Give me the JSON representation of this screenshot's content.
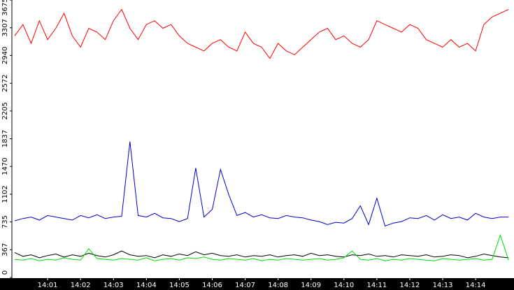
{
  "chart_data": {
    "type": "line",
    "categories": [
      null,
      null,
      null,
      null,
      "14:01",
      null,
      null,
      null,
      "14:02",
      null,
      null,
      null,
      "14:03",
      null,
      null,
      null,
      "14:04",
      null,
      null,
      null,
      "14:05",
      null,
      null,
      null,
      "14:06",
      null,
      null,
      null,
      "14:07",
      null,
      null,
      null,
      "14:08",
      null,
      null,
      null,
      "14:09",
      null,
      null,
      null,
      "14:10",
      null,
      null,
      null,
      "14:11",
      null,
      null,
      null,
      "14:12",
      null,
      null,
      null,
      "14:13",
      null,
      null,
      null,
      "14:14",
      null,
      null,
      null,
      null
    ],
    "ylim": [
      0,
      3675
    ],
    "yticks": [
      0,
      367,
      735,
      1102,
      1470,
      1837,
      2205,
      2572,
      2940,
      3307,
      3675
    ],
    "series": [
      {
        "color": "#ff0000",
        "values": [
          3200,
          3350,
          3100,
          3400,
          3150,
          3300,
          3500,
          3200,
          3050,
          3300,
          3250,
          3150,
          3400,
          3550,
          3300,
          3150,
          3350,
          3400,
          3300,
          3350,
          3200,
          3100,
          3050,
          3000,
          3100,
          3150,
          3050,
          3000,
          3250,
          3100,
          3050,
          2900,
          3100,
          3000,
          2950,
          3050,
          3150,
          3250,
          3300,
          3150,
          3200,
          3100,
          3050,
          3150,
          3400,
          3350,
          3300,
          3250,
          3350,
          3300,
          3150,
          3100,
          3050,
          3150,
          3050,
          3100,
          3000,
          3350,
          3450,
          3500,
          3550
        ]
      },
      {
        "color": "#0000cc",
        "values": [
          750,
          780,
          800,
          760,
          820,
          800,
          780,
          760,
          820,
          790,
          830,
          780,
          800,
          810,
          1800,
          820,
          800,
          850,
          790,
          780,
          740,
          780,
          1450,
          800,
          900,
          1430,
          1100,
          820,
          860,
          800,
          830,
          790,
          780,
          820,
          800,
          790,
          760,
          740,
          700,
          730,
          720,
          780,
          950,
          700,
          1050,
          680,
          720,
          740,
          790,
          780,
          820,
          760,
          830,
          780,
          800,
          760,
          850,
          800,
          780,
          800,
          800
        ]
      },
      {
        "color": "#000000",
        "values": [
          330,
          280,
          300,
          260,
          290,
          310,
          270,
          300,
          280,
          320,
          290,
          270,
          300,
          350,
          300,
          280,
          290,
          260,
          300,
          280,
          310,
          290,
          340,
          300,
          320,
          290,
          280,
          300,
          270,
          290,
          280,
          300,
          270,
          290,
          300,
          280,
          320,
          290,
          300,
          280,
          270,
          300,
          290,
          310,
          280,
          290,
          270,
          300,
          290,
          280,
          300,
          270,
          280,
          300,
          290,
          260,
          280,
          310,
          290,
          270,
          260
        ]
      },
      {
        "color": "#00dd00",
        "values": [
          240,
          230,
          250,
          220,
          240,
          230,
          260,
          240,
          230,
          380,
          250,
          240,
          230,
          250,
          240,
          230,
          260,
          220,
          240,
          250,
          230,
          260,
          250,
          270,
          240,
          230,
          250,
          240,
          230,
          250,
          220,
          240,
          230,
          250,
          240,
          230,
          240,
          250,
          230,
          240,
          260,
          350,
          240,
          230,
          250,
          220,
          240,
          230,
          250,
          240,
          230,
          220,
          250,
          240,
          230,
          240,
          250,
          230,
          240,
          560,
          230
        ]
      }
    ]
  }
}
